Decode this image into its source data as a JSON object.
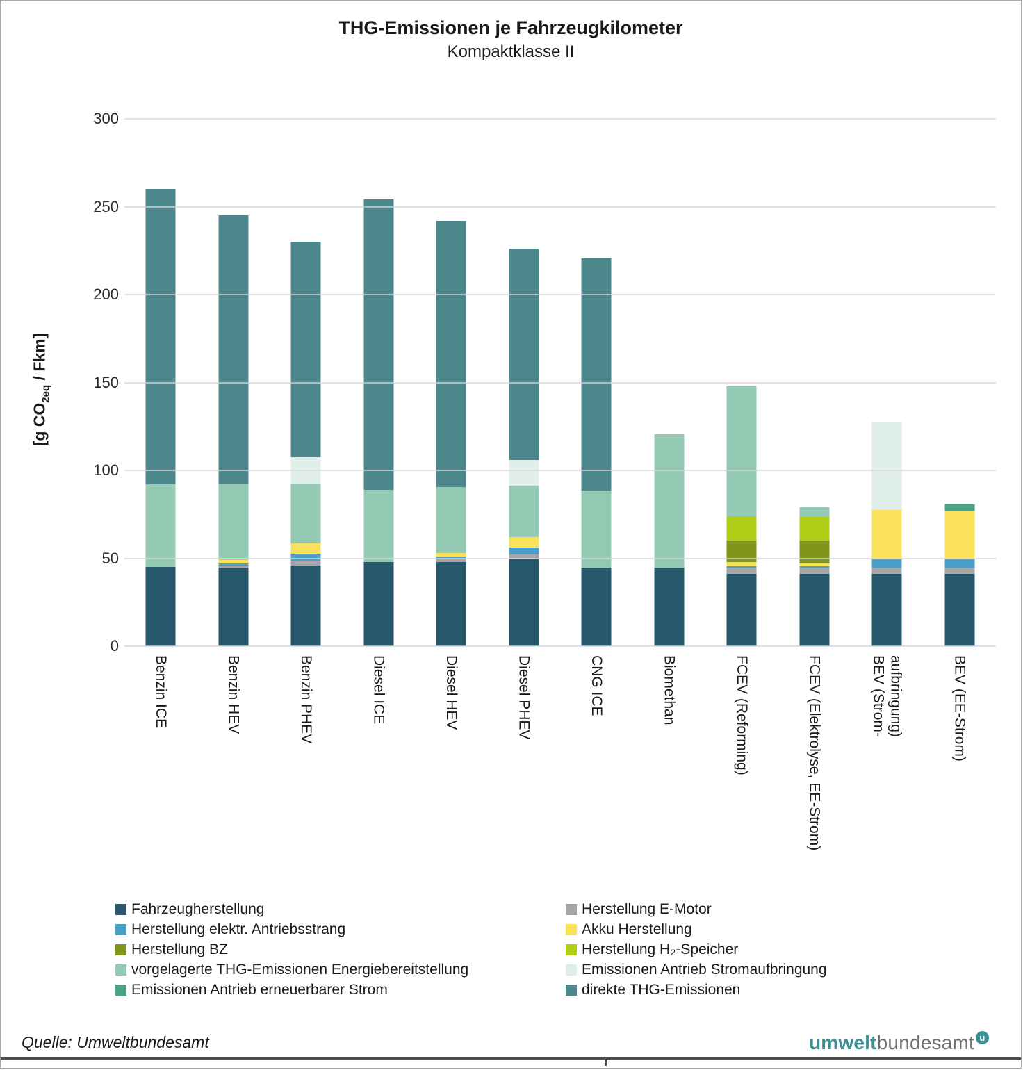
{
  "title": "THG-Emissionen je Fahrzeugkilometer",
  "subtitle": "Kompaktklasse II",
  "y_axis": {
    "label_prefix": "[g CO",
    "label_sub": "2eq",
    "label_suffix": " / Fkm]"
  },
  "source": "Quelle: Umweltbundesamt",
  "logo": {
    "part1": "umwelt",
    "part2": "bundesamt",
    "badge_letter": "u",
    "teal": "#3c8f97",
    "gray": "#6f6f6f"
  },
  "colors": {
    "grid": "#d9d9d9",
    "fahrzeugherstellung": "#27576b",
    "e_motor": "#a6a6a6",
    "antriebsstrang": "#4ba0c9",
    "akku": "#fae15c",
    "bz": "#81951b",
    "h2_speicher": "#afce18",
    "vorgelagert": "#94c9b4",
    "stromaufbringung": "#dfeee9",
    "erneuerbar": "#4ba287",
    "direkt": "#4c878c"
  },
  "legend": [
    {
      "label": "Fahrzeugherstellung",
      "color": "#27576b"
    },
    {
      "label": "Herstellung E-Motor",
      "color": "#a6a6a6"
    },
    {
      "label": "Herstellung elektr. Antriebsstrang",
      "color": "#4ba0c9"
    },
    {
      "label": "Akku Herstellung",
      "color": "#fae15c"
    },
    {
      "label": "Herstellung BZ",
      "color": "#81951b"
    },
    {
      "label": "Herstellung H₂-Speicher",
      "color": "#afce18"
    },
    {
      "label": "vorgelagerte THG-Emissionen Energiebereitstellung",
      "color": "#94c9b4"
    },
    {
      "label": "Emissionen Antrieb Stromaufbringung",
      "color": "#dfeee9"
    },
    {
      "label": "Emissionen Antrieb erneuerbarer Strom",
      "color": "#4ba287"
    },
    {
      "label": "direkte THG-Emissionen",
      "color": "#4c878c"
    }
  ],
  "chart_data": {
    "type": "bar",
    "stacked": true,
    "title": "THG-Emissionen je Fahrzeugkilometer",
    "subtitle": "Kompaktklasse II",
    "ylabel": "[g CO2eq / Fkm]",
    "ylim": [
      0,
      300
    ],
    "yticks": [
      0,
      50,
      100,
      150,
      200,
      250,
      300
    ],
    "grid": "horizontal",
    "legend_position": "bottom",
    "categories": [
      "Benzin ICE",
      "Benzin HEV",
      "Benzin PHEV",
      "Diesel ICE",
      "Diesel HEV",
      "Diesel PHEV",
      "CNG ICE",
      "Biomethan",
      "FCEV (Reforming)",
      "FCEV (Elektrolyse, EE-Strom)",
      "BEV (Strom-\naufbringung)",
      "BEV (EE-Strom)"
    ],
    "series": [
      {
        "name": "Fahrzeugherstellung",
        "color": "#27576b",
        "values": [
          45,
          44.5,
          46,
          48,
          48,
          50,
          44.5,
          44.5,
          41,
          41,
          41,
          41
        ]
      },
      {
        "name": "Herstellung E-Motor",
        "color": "#a6a6a6",
        "values": [
          0,
          1.5,
          2.5,
          0,
          2,
          2,
          0,
          0,
          3.5,
          3.5,
          3.5,
          3.5
        ]
      },
      {
        "name": "Herstellung elektr. Antriebsstrang",
        "color": "#4ba0c9",
        "values": [
          0,
          1,
          4,
          0,
          1,
          4,
          0,
          0,
          1,
          1,
          5.5,
          5.5
        ]
      },
      {
        "name": "Akku Herstellung",
        "color": "#fae15c",
        "values": [
          0,
          2,
          6,
          0,
          2,
          6,
          0,
          0,
          2.5,
          1.5,
          27.5,
          27
        ]
      },
      {
        "name": "Herstellung BZ",
        "color": "#81951b",
        "values": [
          0,
          0,
          0,
          0,
          0,
          0,
          0,
          0,
          12,
          13,
          0,
          0
        ]
      },
      {
        "name": "Herstellung H₂-Speicher",
        "color": "#afce18",
        "values": [
          0,
          0,
          0,
          0,
          0,
          0,
          0,
          0,
          14,
          13.5,
          0,
          0
        ]
      },
      {
        "name": "vorgelagerte THG-Emissionen Energiebereitstellung",
        "color": "#94c9b4",
        "values": [
          47,
          43.5,
          34,
          41,
          37.5,
          29.5,
          44,
          76,
          74,
          5.5,
          0,
          0
        ]
      },
      {
        "name": "Emissionen Antrieb Stromaufbringung",
        "color": "#dfeee9",
        "values": [
          0,
          0,
          15,
          0,
          0,
          14.5,
          0,
          0,
          0,
          0,
          50,
          0
        ]
      },
      {
        "name": "Emissionen Antrieb erneuerbarer Strom",
        "color": "#4ba287",
        "values": [
          0,
          0,
          0,
          0,
          0,
          0,
          0,
          0,
          0,
          0,
          0,
          3.5
        ]
      },
      {
        "name": "direkte THG-Emissionen",
        "color": "#4c878c",
        "values": [
          168,
          152.5,
          122.5,
          165,
          151.5,
          120,
          132,
          0,
          0,
          0,
          0,
          0
        ]
      }
    ]
  }
}
